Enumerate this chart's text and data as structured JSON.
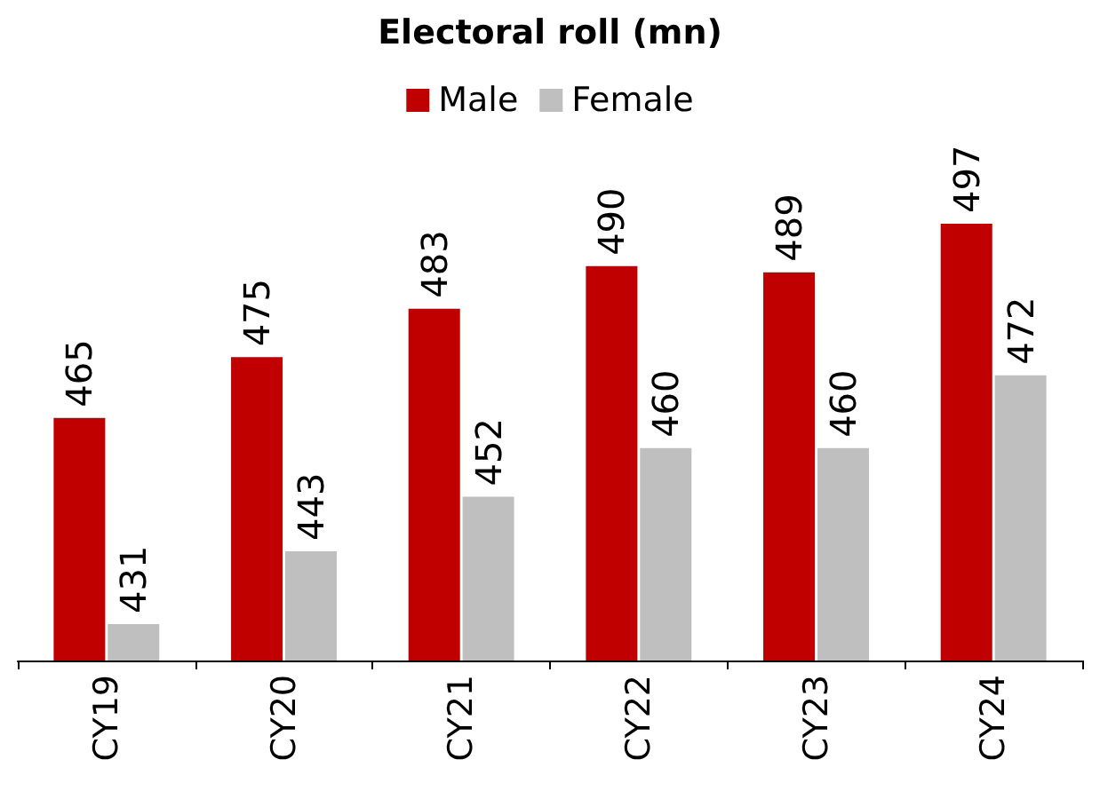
{
  "chart_data": {
    "type": "bar",
    "title": "Electoral roll (mn)",
    "categories": [
      "CY19",
      "CY20",
      "CY21",
      "CY22",
      "CY23",
      "CY24"
    ],
    "series": [
      {
        "name": "Male",
        "color": "#c00000",
        "values": [
          465,
          475,
          483,
          490,
          489,
          497
        ]
      },
      {
        "name": "Female",
        "color": "#bfbfbf",
        "values": [
          431,
          443,
          452,
          460,
          460,
          472
        ]
      }
    ],
    "ylim": [
      425,
      497
    ],
    "data_labels": true,
    "legend": "top",
    "grid": false
  }
}
